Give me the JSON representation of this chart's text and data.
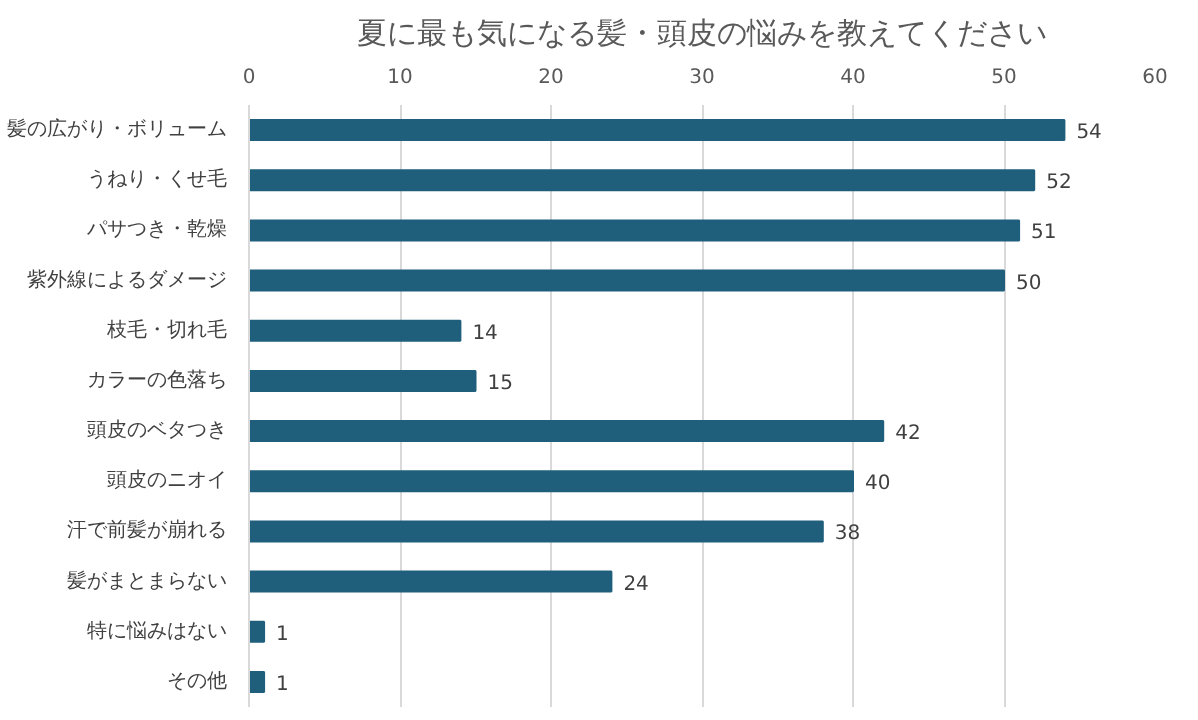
{
  "chart_data": {
    "type": "bar",
    "orientation": "horizontal",
    "title": "夏に最も気になる髪・頭皮の悩みを教えてください",
    "categories": [
      "髪の広がり・ボリューム",
      "うねり・くせ毛",
      "パサつき・乾燥",
      "紫外線によるダメージ",
      "枝毛・切れ毛",
      "カラーの色落ち",
      "頭皮のベタつき",
      "頭皮のニオイ",
      "汗で前髪が崩れる",
      "髪がまとまらない",
      "特に悩みはない",
      "その他"
    ],
    "values": [
      54,
      52,
      51,
      50,
      14,
      15,
      42,
      40,
      38,
      24,
      1,
      1
    ],
    "color": "#1f5f7c",
    "xlim": [
      0,
      60
    ],
    "xticks": [
      0,
      10,
      20,
      30,
      40,
      50,
      60
    ],
    "grid": "x",
    "data_labels": true
  }
}
